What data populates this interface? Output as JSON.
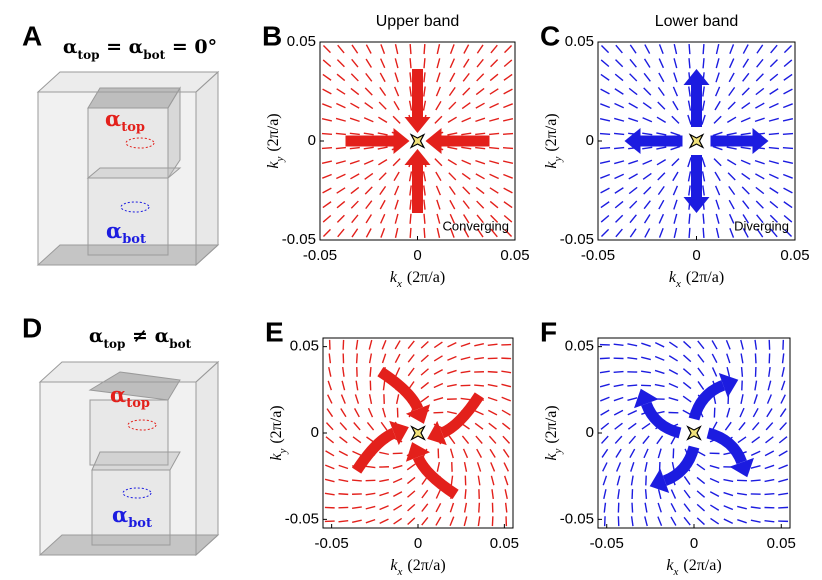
{
  "chart_data": [
    {
      "type": "quiver",
      "letter": "B",
      "title": "Upper band",
      "annotation": "Converging",
      "color": "#e3201b",
      "flow": "converging",
      "swirl": false,
      "xlim": [
        -0.05,
        0.05
      ],
      "ylim": [
        -0.05,
        0.05
      ],
      "xticks": [
        -0.05,
        0,
        0.05
      ],
      "yticks": [
        -0.05,
        0,
        0.05
      ],
      "x_label": {
        "symbol": "k",
        "sub": "x",
        "unit": "(2π/a)"
      },
      "y_label": {
        "symbol": "k",
        "sub": "y",
        "unit": "(2π/a)"
      }
    },
    {
      "type": "quiver",
      "letter": "C",
      "title": "Lower band",
      "annotation": "Diverging",
      "color": "#1c1ce0",
      "flow": "diverging",
      "swirl": false,
      "xlim": [
        -0.05,
        0.05
      ],
      "ylim": [
        -0.05,
        0.05
      ],
      "xticks": [
        -0.05,
        0,
        0.05
      ],
      "yticks": [
        -0.05,
        0,
        0.05
      ],
      "x_label": {
        "symbol": "k",
        "sub": "x",
        "unit": "(2π/a)"
      },
      "y_label": {
        "symbol": "k",
        "sub": "y",
        "unit": "(2π/a)"
      }
    },
    {
      "type": "quiver",
      "letter": "E",
      "color": "#e3201b",
      "flow": "converging",
      "swirl": true,
      "xlim": [
        -0.055,
        0.055
      ],
      "ylim": [
        -0.055,
        0.055
      ],
      "xticks": [
        -0.05,
        0,
        0.05
      ],
      "yticks": [
        -0.05,
        0,
        0.05
      ],
      "x_label": {
        "symbol": "k",
        "sub": "x",
        "unit": "(2π/a)"
      },
      "y_label": {
        "symbol": "k",
        "sub": "y",
        "unit": "(2π/a)"
      }
    },
    {
      "type": "quiver",
      "letter": "F",
      "color": "#1c1ce0",
      "flow": "diverging",
      "swirl": true,
      "xlim": [
        -0.055,
        0.055
      ],
      "ylim": [
        -0.055,
        0.055
      ],
      "xticks": [
        -0.05,
        0,
        0.05
      ],
      "yticks": [
        -0.05,
        0,
        0.05
      ],
      "x_label": {
        "symbol": "k",
        "sub": "x",
        "unit": "(2π/a)"
      },
      "y_label": {
        "symbol": "k",
        "sub": "y",
        "unit": "(2π/a)"
      }
    }
  ],
  "diagrams": [
    {
      "letter": "A",
      "equation": [
        {
          "t": "α",
          "sub": "top"
        },
        {
          "t": " = "
        },
        {
          "t": "α",
          "sub": "bot"
        },
        {
          "t": " = 0°"
        }
      ],
      "top_label": {
        "t": "α",
        "sub": "top"
      },
      "bot_label": {
        "t": "α",
        "sub": "bot"
      }
    },
    {
      "letter": "D",
      "equation": [
        {
          "t": "α",
          "sub": "top"
        },
        {
          "t": " ≠ "
        },
        {
          "t": "α",
          "sub": "bot"
        }
      ],
      "top_label": {
        "t": "α",
        "sub": "top"
      },
      "bot_label": {
        "t": "α",
        "sub": "bot"
      }
    }
  ]
}
